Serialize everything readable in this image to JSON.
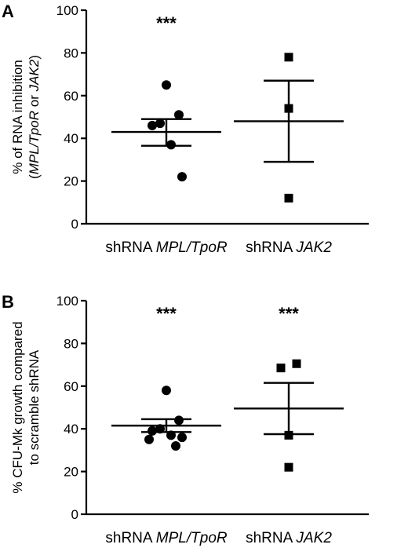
{
  "chart_data": [
    {
      "type": "scatter",
      "panel_label": "A",
      "ylabel_line1": "% of RNA inhibition",
      "ylabel_line2_parts": [
        {
          "text": "(",
          "italic": false
        },
        {
          "text": "MPL/TpoR",
          "italic": true
        },
        {
          "text": " or ",
          "italic": false
        },
        {
          "text": "JAK2",
          "italic": true
        },
        {
          "text": ")",
          "italic": false
        }
      ],
      "ylim": [
        0,
        100
      ],
      "yticks": [
        "0",
        "20",
        "40",
        "60",
        "80",
        "100"
      ],
      "categories": [
        {
          "prefix": "shRNA ",
          "gene": "MPL/TpoR",
          "marker": "circle",
          "points": [
            65,
            51,
            47,
            46,
            37,
            22
          ],
          "mean": 43,
          "sem_low": 36.5,
          "sem_high": 49,
          "significance": "***"
        },
        {
          "prefix": "shRNA ",
          "gene": "JAK2",
          "marker": "square",
          "points": [
            78,
            54,
            12
          ],
          "mean": 48,
          "sem_low": 29,
          "sem_high": 67,
          "significance": ""
        }
      ]
    },
    {
      "type": "scatter",
      "panel_label": "B",
      "ylabel_line1": "% CFU-Mk growth compared",
      "ylabel_line2": "to scramble shRNA",
      "ylim": [
        0,
        100
      ],
      "yticks": [
        "0",
        "20",
        "40",
        "60",
        "80",
        "100"
      ],
      "categories": [
        {
          "prefix": "shRNA ",
          "gene": "MPL/TpoR",
          "marker": "circle",
          "points": [
            58,
            44,
            40,
            39,
            37,
            36,
            35,
            32
          ],
          "mean": 41.5,
          "sem_low": 38.5,
          "sem_high": 44.5,
          "significance": "***"
        },
        {
          "prefix": "shRNA ",
          "gene": "JAK2",
          "marker": "square",
          "points": [
            70.5,
            68.5,
            37,
            22
          ],
          "mean": 49.5,
          "sem_low": 37.5,
          "sem_high": 61.5,
          "significance": "***"
        }
      ]
    }
  ]
}
